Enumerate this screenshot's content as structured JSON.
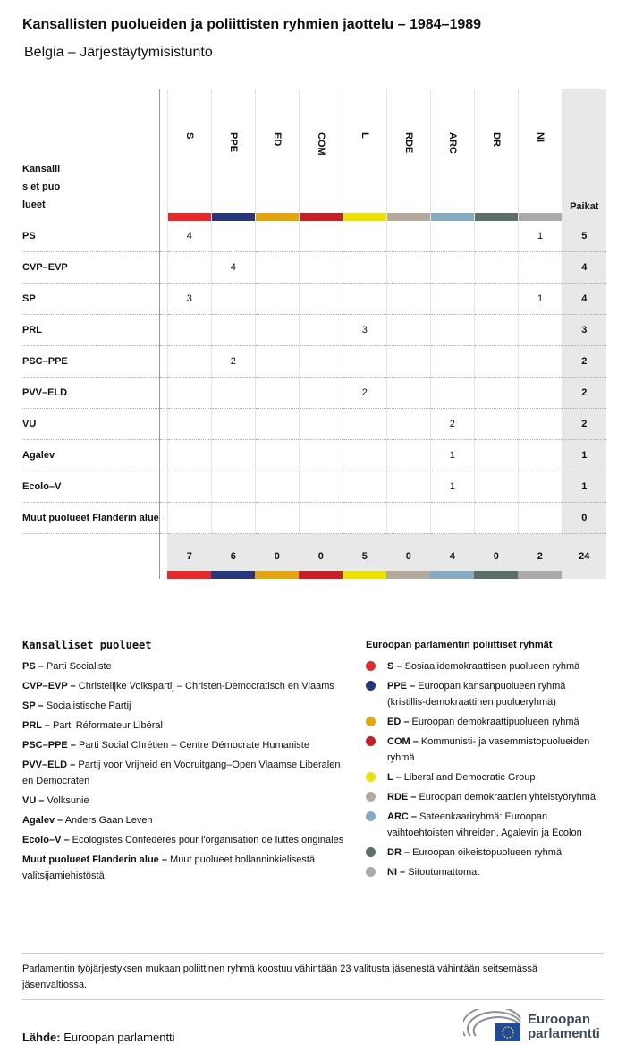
{
  "title": "Kansallisten puolueiden ja poliittisten ryhmien jaottelu – 1984–1989",
  "subtitle": "Belgia – Järjestäytymisistunto",
  "table": {
    "corner": "Kansallis et puolueet",
    "total_header": "Paikat",
    "groups": [
      {
        "code": "S",
        "color": "#e42a2a"
      },
      {
        "code": "PPE",
        "color": "#27367a"
      },
      {
        "code": "ED",
        "color": "#e4a40e"
      },
      {
        "code": "COM",
        "color": "#c42025"
      },
      {
        "code": "L",
        "color": "#ece105"
      },
      {
        "code": "RDE",
        "color": "#b4aa9c"
      },
      {
        "code": "ARC",
        "color": "#86abc0"
      },
      {
        "code": "DR",
        "color": "#5a6f66"
      },
      {
        "code": "NI",
        "color": "#aaaaaa"
      }
    ],
    "rows": [
      {
        "party": "PS",
        "cells": [
          4,
          null,
          null,
          null,
          null,
          null,
          null,
          null,
          1
        ],
        "total": 5
      },
      {
        "party": "CVP–EVP",
        "cells": [
          null,
          4,
          null,
          null,
          null,
          null,
          null,
          null,
          null
        ],
        "total": 4
      },
      {
        "party": "SP",
        "cells": [
          3,
          null,
          null,
          null,
          null,
          null,
          null,
          null,
          1
        ],
        "total": 4
      },
      {
        "party": "PRL",
        "cells": [
          null,
          null,
          null,
          null,
          3,
          null,
          null,
          null,
          null
        ],
        "total": 3
      },
      {
        "party": "PSC–PPE",
        "cells": [
          null,
          2,
          null,
          null,
          null,
          null,
          null,
          null,
          null
        ],
        "total": 2
      },
      {
        "party": "PVV–ELD",
        "cells": [
          null,
          null,
          null,
          null,
          2,
          null,
          null,
          null,
          null
        ],
        "total": 2
      },
      {
        "party": "VU",
        "cells": [
          null,
          null,
          null,
          null,
          null,
          null,
          2,
          null,
          null
        ],
        "total": 2
      },
      {
        "party": "Agalev",
        "cells": [
          null,
          null,
          null,
          null,
          null,
          null,
          1,
          null,
          null
        ],
        "total": 1
      },
      {
        "party": "Ecolo–V",
        "cells": [
          null,
          null,
          null,
          null,
          null,
          null,
          1,
          null,
          null
        ],
        "total": 1
      },
      {
        "party": "Muut puolueet Flanderin alue",
        "cells": [
          null,
          null,
          null,
          null,
          null,
          null,
          null,
          null,
          null
        ],
        "total": 0
      }
    ],
    "totals": [
      7,
      6,
      0,
      0,
      5,
      0,
      4,
      0,
      2
    ],
    "grand_total": 24
  },
  "legend_national": {
    "heading": "Kansalliset puolueet",
    "items": [
      {
        "abbr": "PS –",
        "name": "Parti Socialiste"
      },
      {
        "abbr": "CVP–EVP –",
        "name": "Christelijke Volkspartij – Christen-Democratisch en Vlaams"
      },
      {
        "abbr": "SP –",
        "name": "Socialistische Partij"
      },
      {
        "abbr": "PRL –",
        "name": "Parti Réformateur Libéral"
      },
      {
        "abbr": "PSC–PPE –",
        "name": "Parti Social Chrétien – Centre Démocrate Humaniste"
      },
      {
        "abbr": "PVV–ELD –",
        "name": "Partij voor Vrijheid en Vooruitgang–Open Vlaamse Liberalen en Democraten"
      },
      {
        "abbr": "VU –",
        "name": "Volksunie"
      },
      {
        "abbr": "Agalev –",
        "name": "Anders Gaan Leven"
      },
      {
        "abbr": "Ecolo–V –",
        "name": "Ecologistes Confédérés pour l'organisation de luttes originales"
      },
      {
        "abbr": "Muut puolueet Flanderin alue –",
        "name": "Muut puolueet hollanninkielisestä valitsijamiehistöstä"
      }
    ]
  },
  "legend_groups": {
    "heading": "Euroopan parlamentin poliittiset ryhmät",
    "items": [
      {
        "abbr": "S –",
        "name": "Sosiaalidemokraattisen puolueen ryhmä",
        "color": "#e42a2a"
      },
      {
        "abbr": "PPE –",
        "name": "Euroopan kansanpuolueen ryhmä (kristillis-demokraattinen puolueryhmä)",
        "color": "#27367a"
      },
      {
        "abbr": "ED –",
        "name": "Euroopan demokraattipuolueen ryhmä",
        "color": "#e4a40e"
      },
      {
        "abbr": "COM –",
        "name": "Kommunisti- ja vasemmistopuolueiden ryhmä",
        "color": "#c42025"
      },
      {
        "abbr": "L –",
        "name": "Liberal and Democratic Group",
        "color": "#ece105"
      },
      {
        "abbr": "RDE –",
        "name": "Euroopan demokraattien yhteistyöryhmä",
        "color": "#b4aa9c"
      },
      {
        "abbr": "ARC –",
        "name": "Sateenkaariryhmä: Euroopan vaihtoehtoisten vihreiden, Agalevin ja Ecolon",
        "color": "#86abc0"
      },
      {
        "abbr": "DR –",
        "name": "Euroopan oikeistopuolueen ryhmä",
        "color": "#5a6f66"
      },
      {
        "abbr": "NI –",
        "name": "Sitoutumattomat",
        "color": "#aaaaaa"
      }
    ]
  },
  "note": "Parlamentin työjärjestyksen mukaan poliittinen ryhmä koostuu vähintään 23 valitusta jäsenestä vähintään seitsemässä jäsenvaltiossa.",
  "source": {
    "label": "Lähde:",
    "text": "Euroopan parlamentti"
  },
  "logo": "Euroopan parlamentti"
}
